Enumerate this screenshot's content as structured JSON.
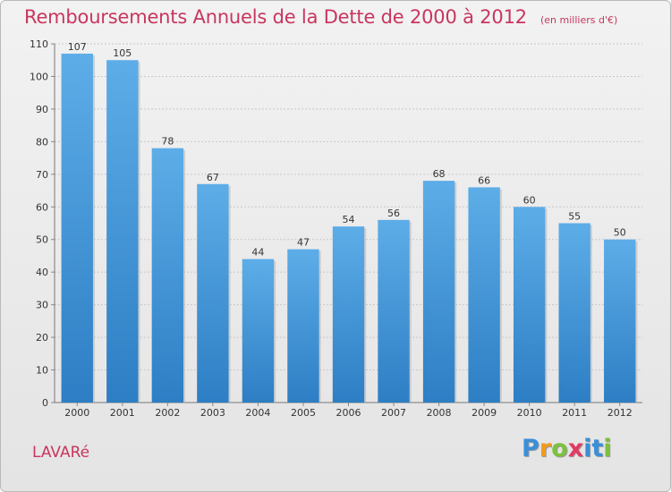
{
  "title": "Remboursements Annuels de la Dette de 2000 à 2012",
  "subtitle": "(en milliers d'€)",
  "commune": "LAVARé",
  "logo": {
    "letters": [
      "P",
      "r",
      "o",
      "x",
      "i",
      "t",
      "i"
    ],
    "colors": [
      "#3a8fd8",
      "#f29a1d",
      "#7cc13f",
      "#e33a63",
      "#3a8fd8",
      "#3a8fd8",
      "#7cc13f"
    ]
  },
  "colors": {
    "bar_top": "#5dade8",
    "bar_bottom": "#2d7ec4",
    "title": "#c8365f",
    "grid": "#c8c8c8",
    "axis_text": "#333333"
  },
  "chart_data": {
    "type": "bar",
    "categories": [
      "2000",
      "2001",
      "2002",
      "2003",
      "2004",
      "2005",
      "2006",
      "2007",
      "2008",
      "2009",
      "2010",
      "2011",
      "2012"
    ],
    "values": [
      107,
      105,
      78,
      67,
      44,
      47,
      54,
      56,
      68,
      66,
      60,
      55,
      50
    ],
    "title": "Remboursements Annuels de la Dette de 2000 à 2012",
    "ylim": [
      0,
      110
    ],
    "yticks": [
      0,
      10,
      20,
      30,
      40,
      50,
      60,
      70,
      80,
      90,
      100,
      110
    ],
    "grid": true,
    "data_labels": true
  }
}
